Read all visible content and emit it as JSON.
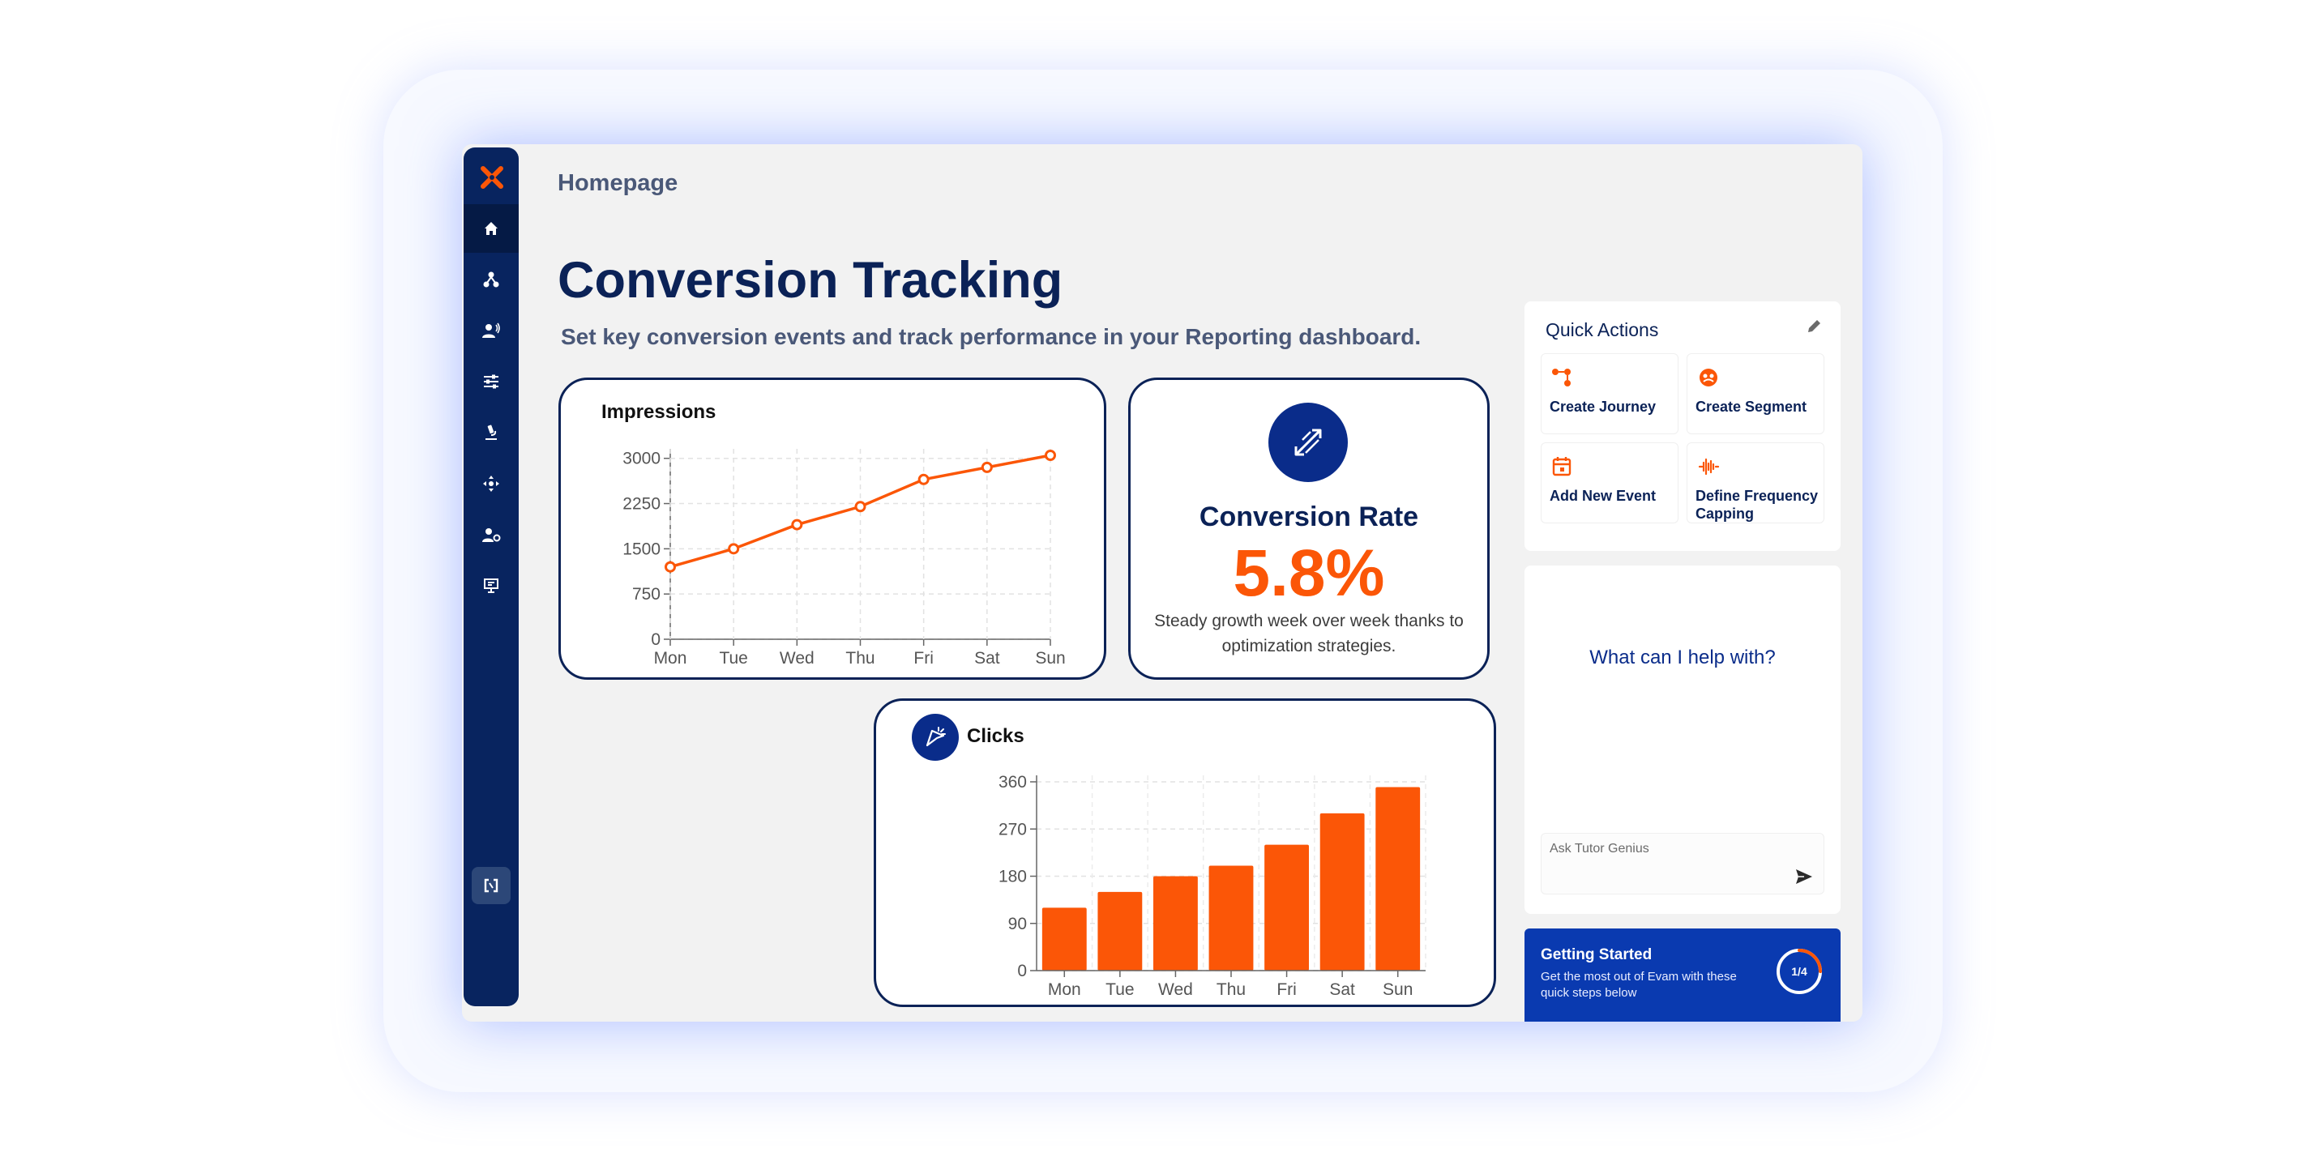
{
  "breadcrumb": "Homepage",
  "page": {
    "title": "Conversion Tracking",
    "subtitle": "Set key conversion events and track performance in your Reporting dashboard."
  },
  "sidebar": {
    "items": [
      {
        "icon": "home-icon",
        "active": true
      },
      {
        "icon": "hierarchy-icon"
      },
      {
        "icon": "user-broadcast-icon"
      },
      {
        "icon": "sliders-icon"
      },
      {
        "icon": "microscope-icon"
      },
      {
        "icon": "move-icon"
      },
      {
        "icon": "user-settings-icon"
      },
      {
        "icon": "presentation-icon"
      }
    ],
    "bottom_icon": "switch-icon"
  },
  "impressions": {
    "title": "Impressions"
  },
  "conversion": {
    "label": "Conversion Rate",
    "value": "5.8%",
    "description": "Steady growth week over week thanks to optimization strategies."
  },
  "clicks": {
    "title": "Clicks"
  },
  "quick_actions": {
    "title": "Quick Actions",
    "items": [
      {
        "label": "Create Journey",
        "icon": "journey-icon"
      },
      {
        "label": "Create Segment",
        "icon": "segment-icon"
      },
      {
        "label": "Add New Event",
        "icon": "calendar-icon"
      },
      {
        "label": "Define Frequency Capping",
        "icon": "frequency-icon"
      }
    ]
  },
  "assistant": {
    "heading": "What can I help with?",
    "placeholder": "Ask Tutor Genius"
  },
  "getting_started": {
    "title": "Getting Started",
    "description": "Get the most out of Evam with these quick steps below",
    "progress_text": "1/4",
    "progress_fraction": 0.25
  },
  "colors": {
    "navy": "#0b2257",
    "accent": "#fb5607",
    "blue": "#0a2c8a"
  },
  "chart_data": [
    {
      "type": "line",
      "title": "Impressions",
      "categories": [
        "Mon",
        "Tue",
        "Wed",
        "Thu",
        "Fri",
        "Sat",
        "Sun"
      ],
      "values": [
        1200,
        1500,
        1900,
        2200,
        2650,
        2850,
        3050
      ],
      "yticks": [
        0,
        750,
        1500,
        2250,
        3000
      ],
      "ylim": [
        0,
        3050
      ],
      "grid": true
    },
    {
      "type": "bar",
      "title": "Clicks",
      "categories": [
        "Mon",
        "Tue",
        "Wed",
        "Thu",
        "Fri",
        "Sat",
        "Sun"
      ],
      "values": [
        120,
        150,
        180,
        200,
        240,
        300,
        350
      ],
      "yticks": [
        0,
        90,
        180,
        270,
        360
      ],
      "ylim": [
        0,
        360
      ],
      "grid": true
    }
  ]
}
